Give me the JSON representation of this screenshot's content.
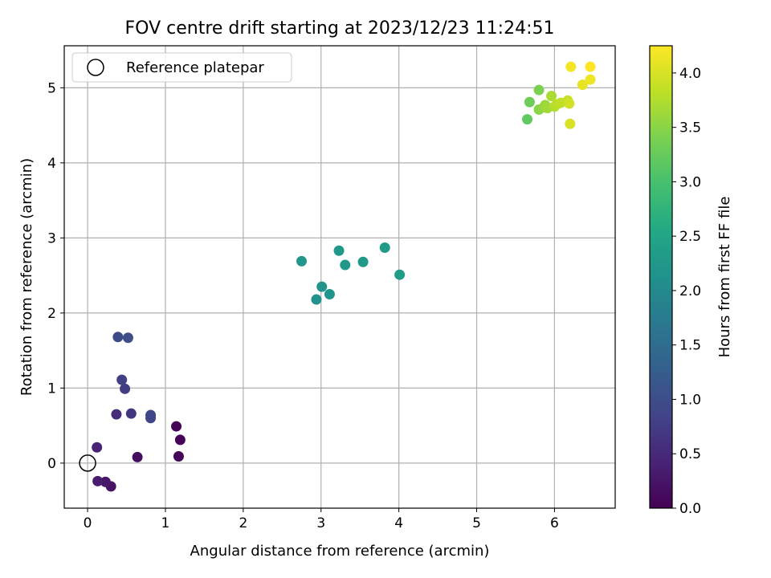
{
  "chart_data": {
    "type": "scatter",
    "title": "FOV centre drift starting at 2023/12/23 11:24:51",
    "xlabel": "Angular distance from reference (arcmin)",
    "ylabel": "Rotation from reference (arcmin)",
    "xlim": [
      -0.3,
      6.78
    ],
    "ylim": [
      -0.6,
      5.56
    ],
    "xticks": [
      0,
      1,
      2,
      3,
      4,
      5,
      6
    ],
    "yticks": [
      0,
      1,
      2,
      3,
      4,
      5
    ],
    "grid": true,
    "legend": {
      "position": "top-left",
      "entries": [
        "Reference platepar"
      ]
    },
    "reference_point": {
      "x": 0,
      "y": 0,
      "label": "Reference platepar"
    },
    "colorbar": {
      "label": "Hours from first FF file",
      "colormap": "viridis",
      "range": [
        0,
        4.25
      ],
      "ticks": [
        "0.0",
        "0.5",
        "1.0",
        "1.5",
        "2.0",
        "2.5",
        "3.0",
        "3.5",
        "4.0"
      ]
    },
    "points": [
      {
        "x": 1.14,
        "y": 0.49,
        "c": 0.02
      },
      {
        "x": 1.19,
        "y": 0.31,
        "c": 0.04
      },
      {
        "x": 1.17,
        "y": 0.09,
        "c": 0.06
      },
      {
        "x": 0.64,
        "y": 0.08,
        "c": 0.15
      },
      {
        "x": 0.3,
        "y": -0.31,
        "c": 0.22
      },
      {
        "x": 0.23,
        "y": -0.25,
        "c": 0.27
      },
      {
        "x": 0.13,
        "y": -0.24,
        "c": 0.33
      },
      {
        "x": 0.12,
        "y": 0.21,
        "c": 0.4
      },
      {
        "x": 0.37,
        "y": 0.65,
        "c": 0.55
      },
      {
        "x": 0.56,
        "y": 0.66,
        "c": 0.65
      },
      {
        "x": 0.48,
        "y": 0.99,
        "c": 0.75
      },
      {
        "x": 0.44,
        "y": 1.11,
        "c": 0.8
      },
      {
        "x": 0.81,
        "y": 0.6,
        "c": 0.85
      },
      {
        "x": 0.81,
        "y": 0.64,
        "c": 0.9
      },
      {
        "x": 0.39,
        "y": 1.68,
        "c": 0.95
      },
      {
        "x": 0.52,
        "y": 1.67,
        "c": 1.0
      },
      {
        "x": 2.94,
        "y": 2.18,
        "c": 2.15
      },
      {
        "x": 3.01,
        "y": 2.35,
        "c": 2.18
      },
      {
        "x": 3.11,
        "y": 2.25,
        "c": 2.2
      },
      {
        "x": 2.75,
        "y": 2.69,
        "c": 2.22
      },
      {
        "x": 3.23,
        "y": 2.83,
        "c": 2.24
      },
      {
        "x": 3.31,
        "y": 2.64,
        "c": 2.26
      },
      {
        "x": 3.54,
        "y": 2.68,
        "c": 2.28
      },
      {
        "x": 3.82,
        "y": 2.87,
        "c": 2.3
      },
      {
        "x": 4.01,
        "y": 2.51,
        "c": 2.33
      },
      {
        "x": 5.65,
        "y": 4.58,
        "c": 3.2
      },
      {
        "x": 5.68,
        "y": 4.81,
        "c": 3.3
      },
      {
        "x": 5.8,
        "y": 4.97,
        "c": 3.4
      },
      {
        "x": 5.8,
        "y": 4.71,
        "c": 3.5
      },
      {
        "x": 5.86,
        "y": 4.74,
        "c": 3.55
      },
      {
        "x": 5.88,
        "y": 4.77,
        "c": 3.6
      },
      {
        "x": 5.91,
        "y": 4.73,
        "c": 3.65
      },
      {
        "x": 5.96,
        "y": 4.89,
        "c": 3.7
      },
      {
        "x": 6.0,
        "y": 4.75,
        "c": 3.75
      },
      {
        "x": 6.03,
        "y": 4.78,
        "c": 3.8
      },
      {
        "x": 6.08,
        "y": 4.8,
        "c": 3.85
      },
      {
        "x": 6.17,
        "y": 4.83,
        "c": 3.9
      },
      {
        "x": 6.19,
        "y": 4.79,
        "c": 3.95
      },
      {
        "x": 6.2,
        "y": 4.52,
        "c": 4.0
      },
      {
        "x": 6.36,
        "y": 5.04,
        "c": 4.1
      },
      {
        "x": 6.46,
        "y": 5.11,
        "c": 4.15
      },
      {
        "x": 6.21,
        "y": 5.28,
        "c": 4.2
      },
      {
        "x": 6.46,
        "y": 5.28,
        "c": 4.25
      }
    ]
  }
}
